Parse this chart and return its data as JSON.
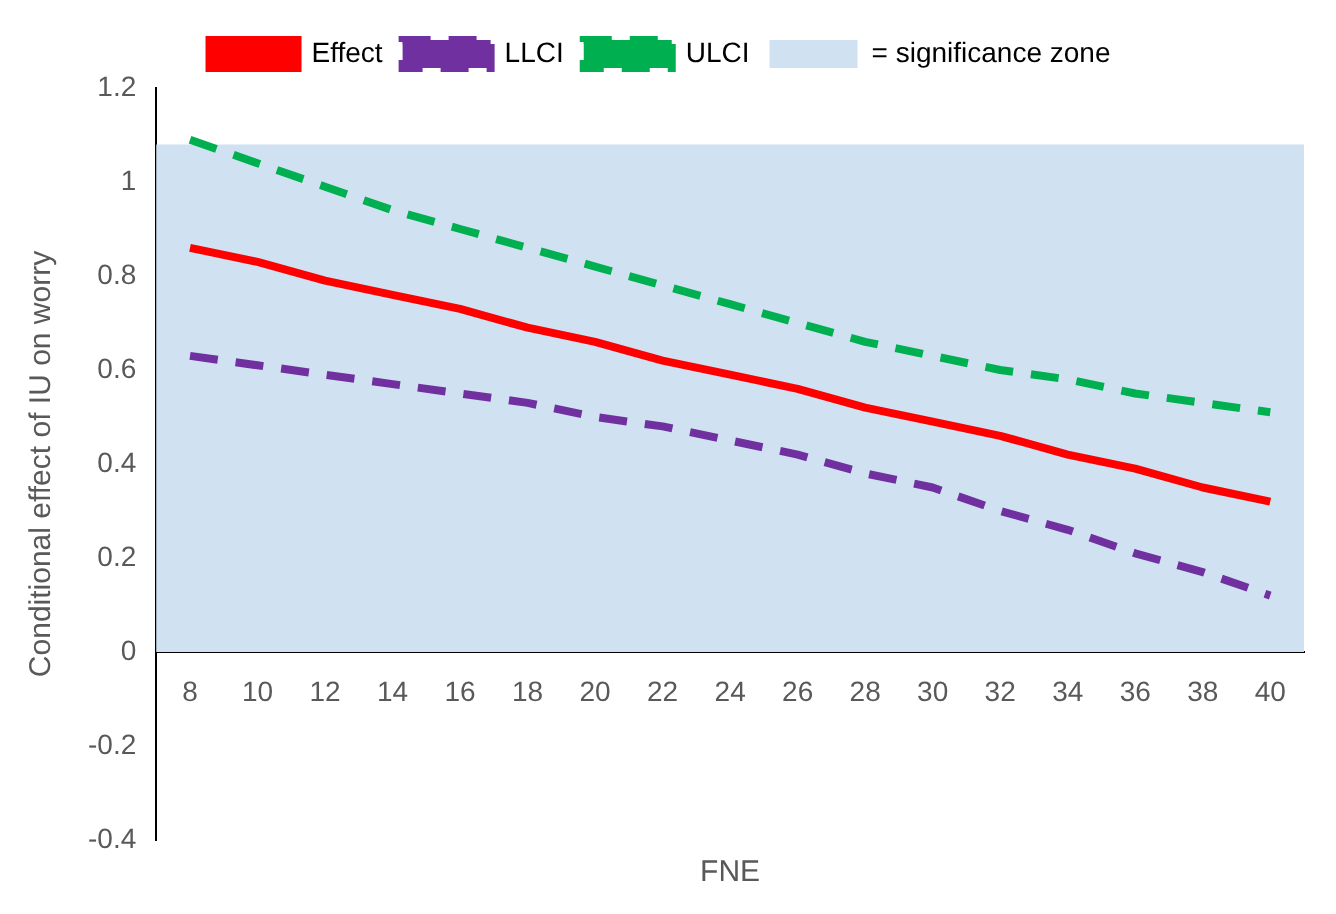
{
  "chart_data": {
    "type": "line",
    "xlabel": "FNE",
    "ylabel": "Conditional effect of IU on worry",
    "categories": [
      "8",
      "10",
      "12",
      "14",
      "16",
      "18",
      "20",
      "22",
      "24",
      "26",
      "28",
      "30",
      "32",
      "34",
      "36",
      "38",
      "40"
    ],
    "series": [
      {
        "name": "Effect",
        "color": "#ff0000",
        "line_style": "solid",
        "values": [
          0.86,
          0.83,
          0.79,
          0.76,
          0.73,
          0.69,
          0.66,
          0.62,
          0.59,
          0.56,
          0.52,
          0.49,
          0.46,
          0.42,
          0.39,
          0.35,
          0.32
        ]
      },
      {
        "name": "LLCI",
        "color": "#7030a0",
        "line_style": "dashed",
        "values": [
          0.63,
          0.61,
          0.59,
          0.57,
          0.55,
          0.53,
          0.5,
          0.48,
          0.45,
          0.42,
          0.38,
          0.35,
          0.3,
          0.26,
          0.21,
          0.17,
          0.12
        ]
      },
      {
        "name": "ULCI",
        "color": "#00b050",
        "line_style": "dashed",
        "values": [
          1.09,
          1.04,
          0.99,
          0.94,
          0.9,
          0.86,
          0.82,
          0.78,
          0.74,
          0.7,
          0.66,
          0.63,
          0.6,
          0.58,
          0.55,
          0.53,
          0.51
        ]
      }
    ],
    "bands": [
      {
        "axis": "y",
        "from": 0,
        "to": 1.08,
        "label": "= significance zone",
        "color": "#d0e1f2"
      }
    ],
    "ylim": [
      -0.4,
      1.2
    ],
    "yticks": [
      -0.4,
      -0.2,
      0,
      0.2,
      0.4,
      0.6,
      0.8,
      1,
      1.2
    ],
    "grid": false,
    "legend": "top",
    "marker": "none"
  }
}
